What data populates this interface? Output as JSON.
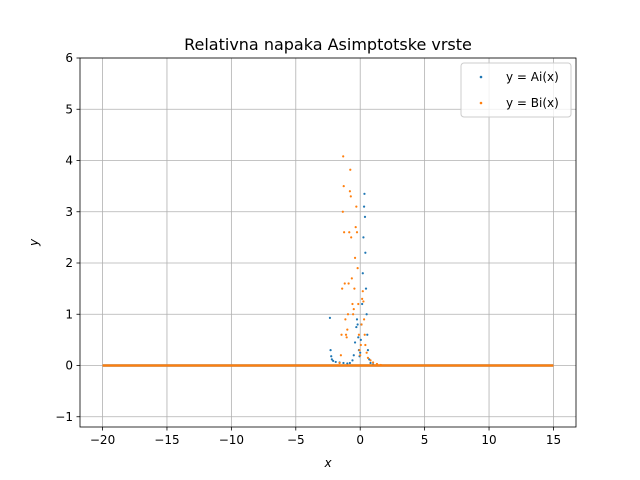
{
  "chart_data": {
    "type": "scatter",
    "title": "Relativna napaka Asimptotske vrste",
    "xlabel": "x",
    "ylabel": "y",
    "xlim": [
      -21.75,
      16.75
    ],
    "ylim": [
      -1.2,
      6.0
    ],
    "xticks": [
      -20,
      -15,
      -10,
      -5,
      0,
      5,
      10,
      15
    ],
    "xtick_labels": [
      "−20",
      "−15",
      "−10",
      "−5",
      "0",
      "5",
      "10",
      "15"
    ],
    "yticks": [
      -1,
      0,
      1,
      2,
      3,
      4,
      5,
      6
    ],
    "ytick_labels": [
      "−1",
      "0",
      "1",
      "2",
      "3",
      "4",
      "5",
      "6"
    ],
    "grid": true,
    "legend_position": "top-right",
    "series": [
      {
        "name": "y = Ai(x)",
        "color": "#1f77b4",
        "x_range": [
          -20,
          15
        ],
        "baseline": 0,
        "points": [
          [
            -2.35,
            0.93
          ],
          [
            -2.3,
            0.3
          ],
          [
            -2.25,
            0.18
          ],
          [
            -2.2,
            0.12
          ],
          [
            -2.1,
            0.09
          ],
          [
            -1.9,
            0.07
          ],
          [
            -1.6,
            0.06
          ],
          [
            -1.3,
            0.05
          ],
          [
            -1.0,
            0.04
          ],
          [
            -0.8,
            0.05
          ],
          [
            -0.6,
            0.1
          ],
          [
            -0.5,
            0.2
          ],
          [
            -0.4,
            0.45
          ],
          [
            -0.3,
            0.75
          ],
          [
            -0.25,
            0.9
          ],
          [
            -0.2,
            0.8
          ],
          [
            -0.15,
            0.55
          ],
          [
            -0.1,
            0.3
          ],
          [
            -0.05,
            0.18
          ],
          [
            0.0,
            0.25
          ],
          [
            0.05,
            0.5
          ],
          [
            0.1,
            0.8
          ],
          [
            0.15,
            1.2
          ],
          [
            0.2,
            1.8
          ],
          [
            0.25,
            2.5
          ],
          [
            0.3,
            3.1
          ],
          [
            0.33,
            3.35
          ],
          [
            0.37,
            2.9
          ],
          [
            0.4,
            2.2
          ],
          [
            0.45,
            1.5
          ],
          [
            0.5,
            1.0
          ],
          [
            0.55,
            0.6
          ],
          [
            0.6,
            0.3
          ],
          [
            0.7,
            0.12
          ],
          [
            0.8,
            0.05
          ],
          [
            1.0,
            0.02
          ]
        ]
      },
      {
        "name": "y = Bi(x)",
        "color": "#ff7f0e",
        "x_range": [
          -20,
          15
        ],
        "baseline": 0,
        "points": [
          [
            -1.6,
            0.05
          ],
          [
            -1.5,
            0.2
          ],
          [
            -1.45,
            0.6
          ],
          [
            -1.4,
            1.5
          ],
          [
            -1.35,
            3.0
          ],
          [
            -1.32,
            4.08
          ],
          [
            -1.28,
            3.5
          ],
          [
            -1.25,
            2.6
          ],
          [
            -1.2,
            1.6
          ],
          [
            -1.15,
            0.9
          ],
          [
            -1.1,
            0.6
          ],
          [
            -1.05,
            0.55
          ],
          [
            -1.0,
            0.7
          ],
          [
            -0.95,
            1.0
          ],
          [
            -0.9,
            1.6
          ],
          [
            -0.85,
            2.6
          ],
          [
            -0.8,
            3.4
          ],
          [
            -0.77,
            3.82
          ],
          [
            -0.73,
            3.3
          ],
          [
            -0.7,
            2.5
          ],
          [
            -0.65,
            1.7
          ],
          [
            -0.6,
            1.2
          ],
          [
            -0.55,
            1.0
          ],
          [
            -0.5,
            1.1
          ],
          [
            -0.45,
            1.5
          ],
          [
            -0.4,
            2.1
          ],
          [
            -0.35,
            2.7
          ],
          [
            -0.3,
            3.1
          ],
          [
            -0.25,
            2.6
          ],
          [
            -0.2,
            1.9
          ],
          [
            -0.15,
            1.2
          ],
          [
            -0.1,
            0.6
          ],
          [
            -0.05,
            0.3
          ],
          [
            0.0,
            0.2
          ],
          [
            0.05,
            0.4
          ],
          [
            0.1,
            0.8
          ],
          [
            0.15,
            1.3
          ],
          [
            0.2,
            1.45
          ],
          [
            0.25,
            1.25
          ],
          [
            0.3,
            0.9
          ],
          [
            0.35,
            0.6
          ],
          [
            0.4,
            0.4
          ],
          [
            0.5,
            0.25
          ],
          [
            0.6,
            0.15
          ],
          [
            0.8,
            0.1
          ],
          [
            1.0,
            0.06
          ],
          [
            1.3,
            0.03
          ],
          [
            1.6,
            0.01
          ]
        ]
      }
    ]
  }
}
